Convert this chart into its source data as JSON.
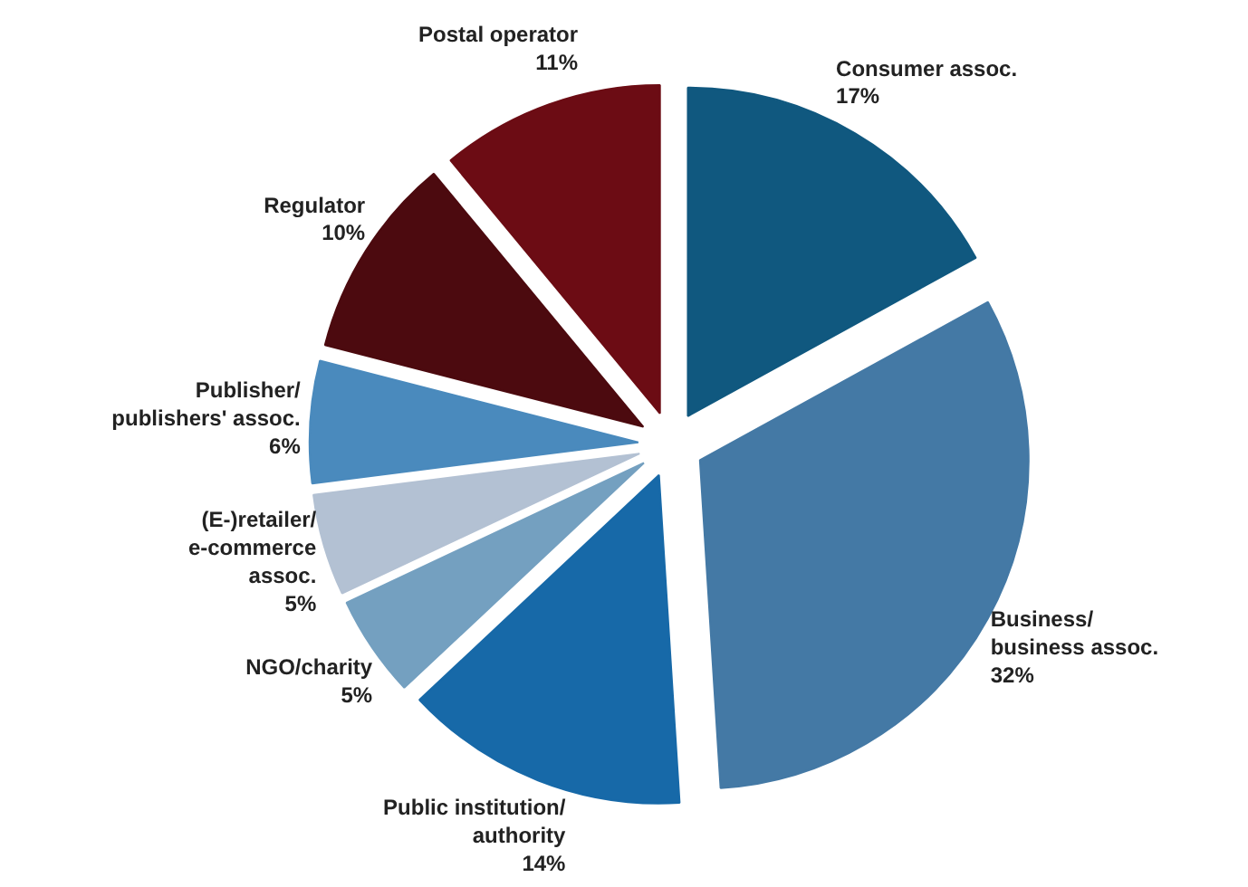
{
  "chart_data": {
    "type": "pie",
    "categories": [
      "Consumer assoc.",
      "Business/\nbusiness assoc.",
      "Public institution/\nauthority",
      "NGO/charity",
      "(E-)retailer/\ne-commerce\nassoc.",
      "Publisher/\npublishers' assoc.",
      "Regulator",
      "Postal operator"
    ],
    "values": [
      17,
      32,
      14,
      5,
      5,
      6,
      10,
      11
    ],
    "value_labels": [
      "17%",
      "32%",
      "14%",
      "5%",
      "5%",
      "6%",
      "10%",
      "11%"
    ],
    "colors": [
      "#10587f",
      "#4479a5",
      "#1769a8",
      "#74a0c0",
      "#b3c1d3",
      "#4a8abd",
      "#4c0a0f",
      "#6c0c14"
    ]
  }
}
